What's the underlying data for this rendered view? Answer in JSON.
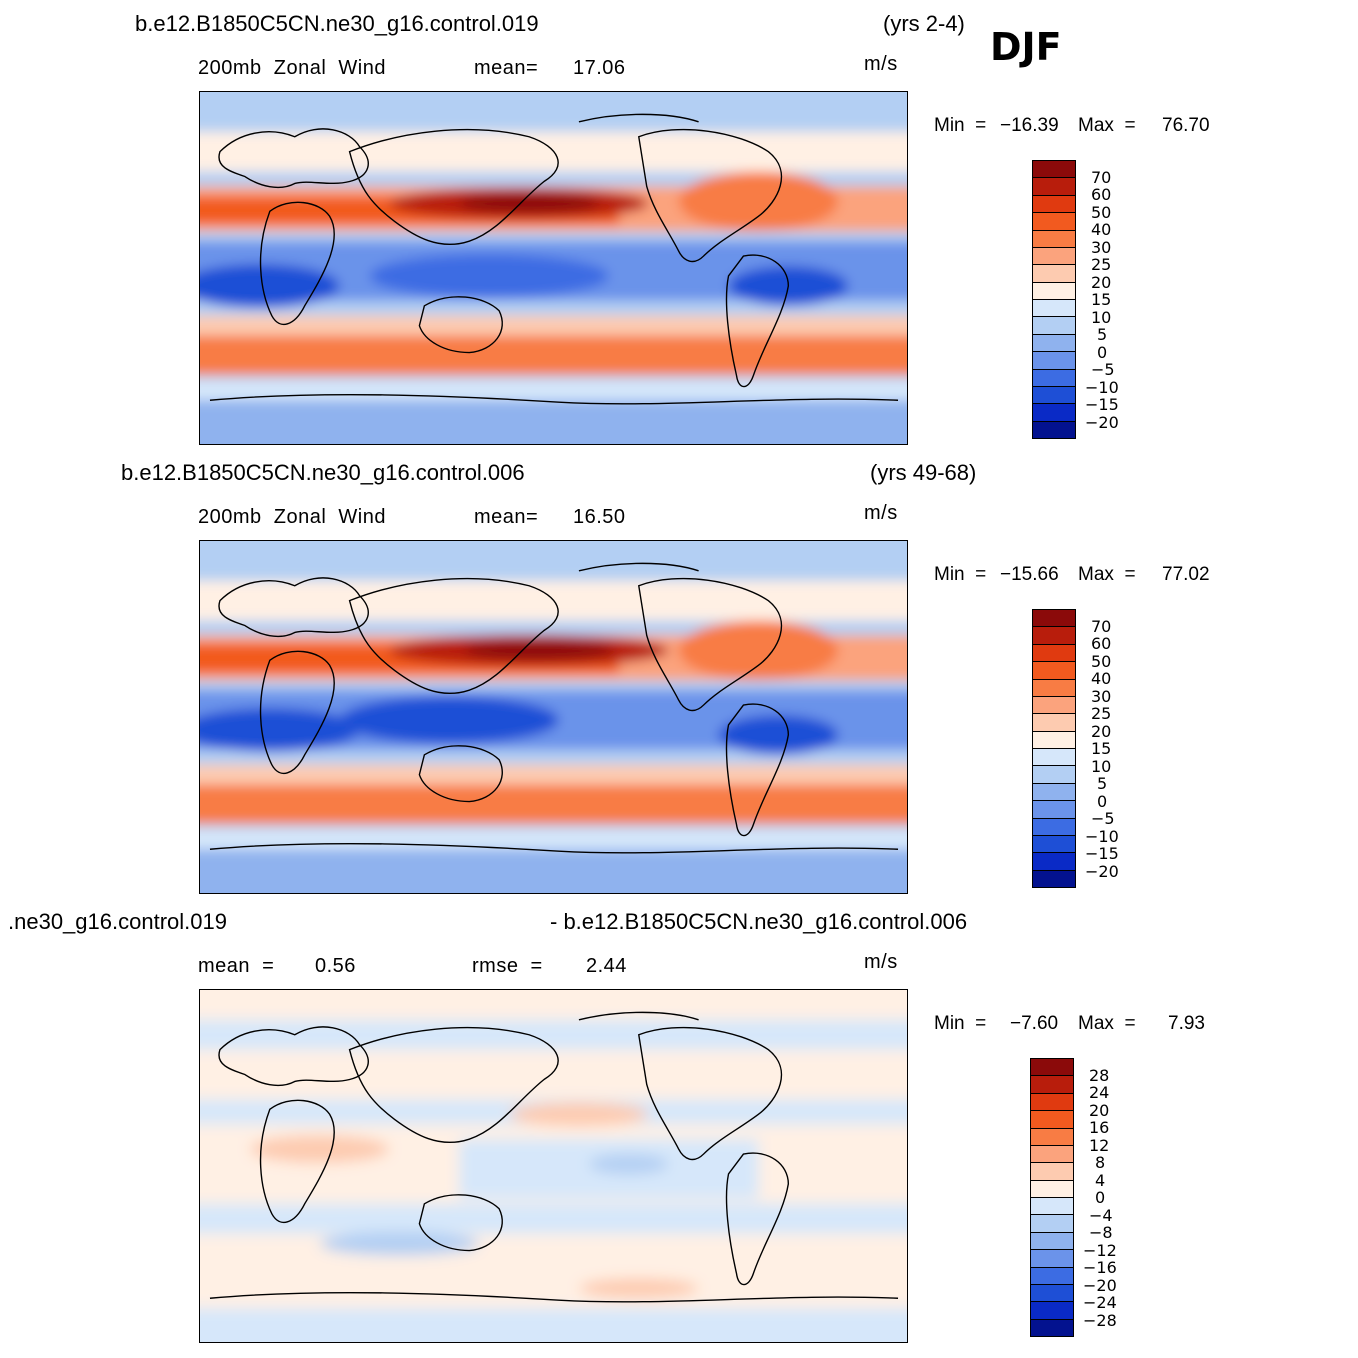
{
  "season": "DJF",
  "units": "m/s",
  "palette": {
    "p70": "#8b0a0a",
    "p60": "#b81d0c",
    "p50": "#e03a10",
    "p40": "#f25a1f",
    "p30": "#f87c44",
    "p25": "#fba37d",
    "p20": "#fdcbb0",
    "p15": "#fff0e4",
    "n10": "#d6e7fa",
    "n5": "#b3cff3",
    "n0": "#8fb2ee",
    "nm5": "#6b93ea",
    "nm10": "#3c6ce3",
    "nm15": "#1e4fd6",
    "nm20": "#0a2ac6",
    "nm25": "#03128f"
  },
  "panels": [
    {
      "case_title": "b.e12.B1850C5CN.ne30_g16.control.019",
      "years": "(yrs 2-4)",
      "subtitle": "200mb  Zonal  Wind",
      "stat_label": "mean=",
      "stat_value": "17.06",
      "units": "m/s",
      "min_label": "Min  =",
      "min_value": "−16.39",
      "max_label": "Max  =",
      "max_value": "76.70",
      "colorbar_labels": [
        "70",
        "60",
        "50",
        "40",
        "30",
        "25",
        "20",
        "15",
        "10",
        "5",
        "0",
        "−5",
        "−10",
        "−15",
        "−20"
      ]
    },
    {
      "case_title": "b.e12.B1850C5CN.ne30_g16.control.006",
      "years": "(yrs 49-68)",
      "subtitle": "200mb  Zonal  Wind",
      "stat_label": "mean=",
      "stat_value": "16.50",
      "units": "m/s",
      "min_label": "Min  =",
      "min_value": "−15.66",
      "max_label": "Max  =",
      "max_value": "77.02",
      "colorbar_labels": [
        "70",
        "60",
        "50",
        "40",
        "30",
        "25",
        "20",
        "15",
        "10",
        "5",
        "0",
        "−5",
        "−10",
        "−15",
        "−20"
      ]
    },
    {
      "case_title_left": ".ne30_g16.control.019",
      "case_title_right": "- b.e12.B1850C5CN.ne30_g16.control.006",
      "mean_label": "mean  =",
      "mean_value": "0.56",
      "rmse_label": "rmse  =",
      "rmse_value": "2.44",
      "units": "m/s",
      "min_label": "Min  =",
      "min_value": "−7.60",
      "max_label": "Max  =",
      "max_value": "7.93",
      "colorbar_labels": [
        "28",
        "24",
        "20",
        "16",
        "12",
        "8",
        "4",
        "0",
        "−4",
        "−8",
        "−12",
        "−16",
        "−20",
        "−24",
        "−28"
      ]
    }
  ]
}
